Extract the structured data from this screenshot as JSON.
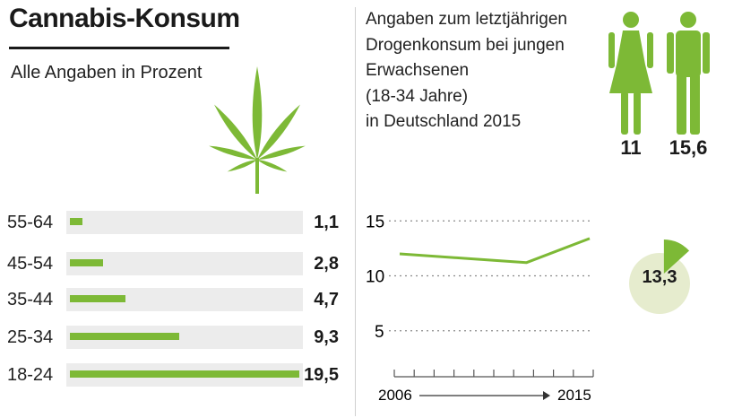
{
  "title": "Cannabis-Konsum",
  "subtitle": "Alle Angaben in Prozent",
  "colors": {
    "accent": "#7db936",
    "track": "#ececec",
    "donut_bg": "#e6ecce"
  },
  "heading_lines": [
    "Angaben zum letztjährigen",
    "Drogenkonsum bei jungen",
    "Erwachsenen",
    "(18-34 Jahre)",
    "in Deutschland 2015"
  ],
  "gender": {
    "female": {
      "icon": "woman-icon",
      "value": "11"
    },
    "male": {
      "icon": "man-icon",
      "value": "15,6"
    }
  },
  "chart_data": [
    {
      "type": "bar",
      "orientation": "horizontal",
      "categories": [
        "55-64",
        "45-54",
        "35-44",
        "25-34",
        "18-24"
      ],
      "values": [
        1.1,
        2.8,
        4.7,
        9.3,
        19.5
      ],
      "value_labels": [
        "1,1",
        "2,8",
        "4,7",
        "9,3",
        "19,5"
      ],
      "xlim": [
        0,
        19.5
      ],
      "title": "",
      "xlabel": "",
      "ylabel": ""
    },
    {
      "type": "line",
      "x": [
        2006,
        2009,
        2012,
        2015
      ],
      "y": [
        12.0,
        11.6,
        11.2,
        13.4
      ],
      "ylim": [
        0,
        16
      ],
      "yticks": [
        15,
        10,
        5
      ],
      "ytick_labels": [
        "15",
        "10",
        "5"
      ],
      "grid": true,
      "x_start_label": "2006",
      "x_end_label": "2015",
      "x_tick_count": 11
    },
    {
      "type": "pie",
      "value": 13.3,
      "value_label": "13,3",
      "max": 100
    }
  ]
}
